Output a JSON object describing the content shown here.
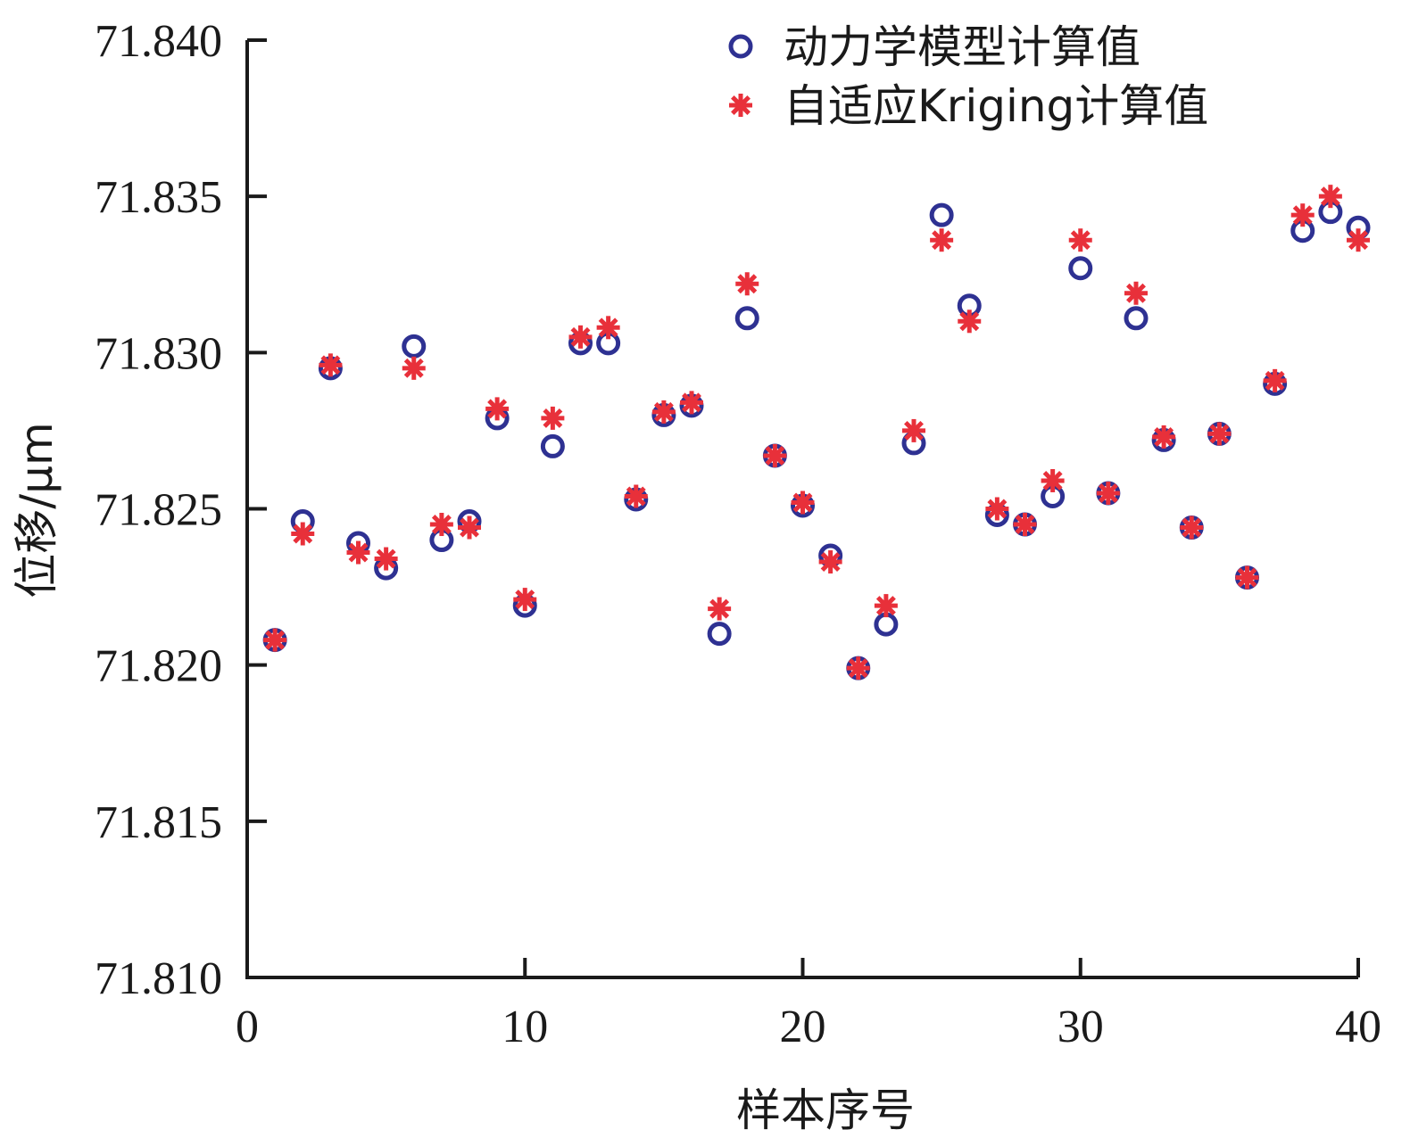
{
  "chart_data": {
    "type": "scatter",
    "xlabel": "样本序号",
    "ylabel": "位移/μm",
    "xlim": [
      0,
      40
    ],
    "ylim": [
      71.81,
      71.84
    ],
    "xticks": [
      0,
      10,
      20,
      30,
      40
    ],
    "xtick_labels": [
      "0",
      "10",
      "20",
      "30",
      "40"
    ],
    "yticks": [
      71.81,
      71.815,
      71.82,
      71.825,
      71.83,
      71.835,
      71.84
    ],
    "ytick_labels": [
      "71.810",
      "71.815",
      "71.820",
      "71.825",
      "71.830",
      "71.835",
      "71.840"
    ],
    "grid": false,
    "legend_position": "top-right",
    "x": [
      1,
      2,
      3,
      4,
      5,
      6,
      7,
      8,
      9,
      10,
      11,
      12,
      13,
      14,
      15,
      16,
      17,
      18,
      19,
      20,
      21,
      22,
      23,
      24,
      25,
      26,
      27,
      28,
      29,
      30,
      31,
      32,
      33,
      34,
      35,
      36,
      37,
      38,
      39,
      40
    ],
    "series": [
      {
        "name": "动力学模型计算值",
        "marker": "circle",
        "color": "#2e3192",
        "values": [
          71.8208,
          71.8246,
          71.8295,
          71.8239,
          71.8231,
          71.8302,
          71.824,
          71.8246,
          71.8279,
          71.8219,
          71.827,
          71.8303,
          71.8303,
          71.8253,
          71.828,
          71.8283,
          71.821,
          71.8311,
          71.8267,
          71.8251,
          71.8235,
          71.8199,
          71.8213,
          71.8271,
          71.8344,
          71.8315,
          71.8248,
          71.8245,
          71.8254,
          71.8327,
          71.8255,
          71.8311,
          71.8272,
          71.8244,
          71.8274,
          71.8228,
          71.829,
          71.8339,
          71.8345,
          71.834
        ]
      },
      {
        "name": "自适应Kriging计算值",
        "marker": "asterisk",
        "color": "#e8303a",
        "values": [
          71.8208,
          71.8242,
          71.8296,
          71.8236,
          71.8234,
          71.8295,
          71.8245,
          71.8244,
          71.8282,
          71.8221,
          71.8279,
          71.8305,
          71.8308,
          71.8254,
          71.8281,
          71.8284,
          71.8218,
          71.8322,
          71.8267,
          71.8252,
          71.8233,
          71.8199,
          71.8219,
          71.8275,
          71.8336,
          71.831,
          71.825,
          71.8245,
          71.8259,
          71.8336,
          71.8255,
          71.8319,
          71.8273,
          71.8244,
          71.8274,
          71.8228,
          71.8291,
          71.8344,
          71.835,
          71.8336
        ]
      }
    ]
  }
}
